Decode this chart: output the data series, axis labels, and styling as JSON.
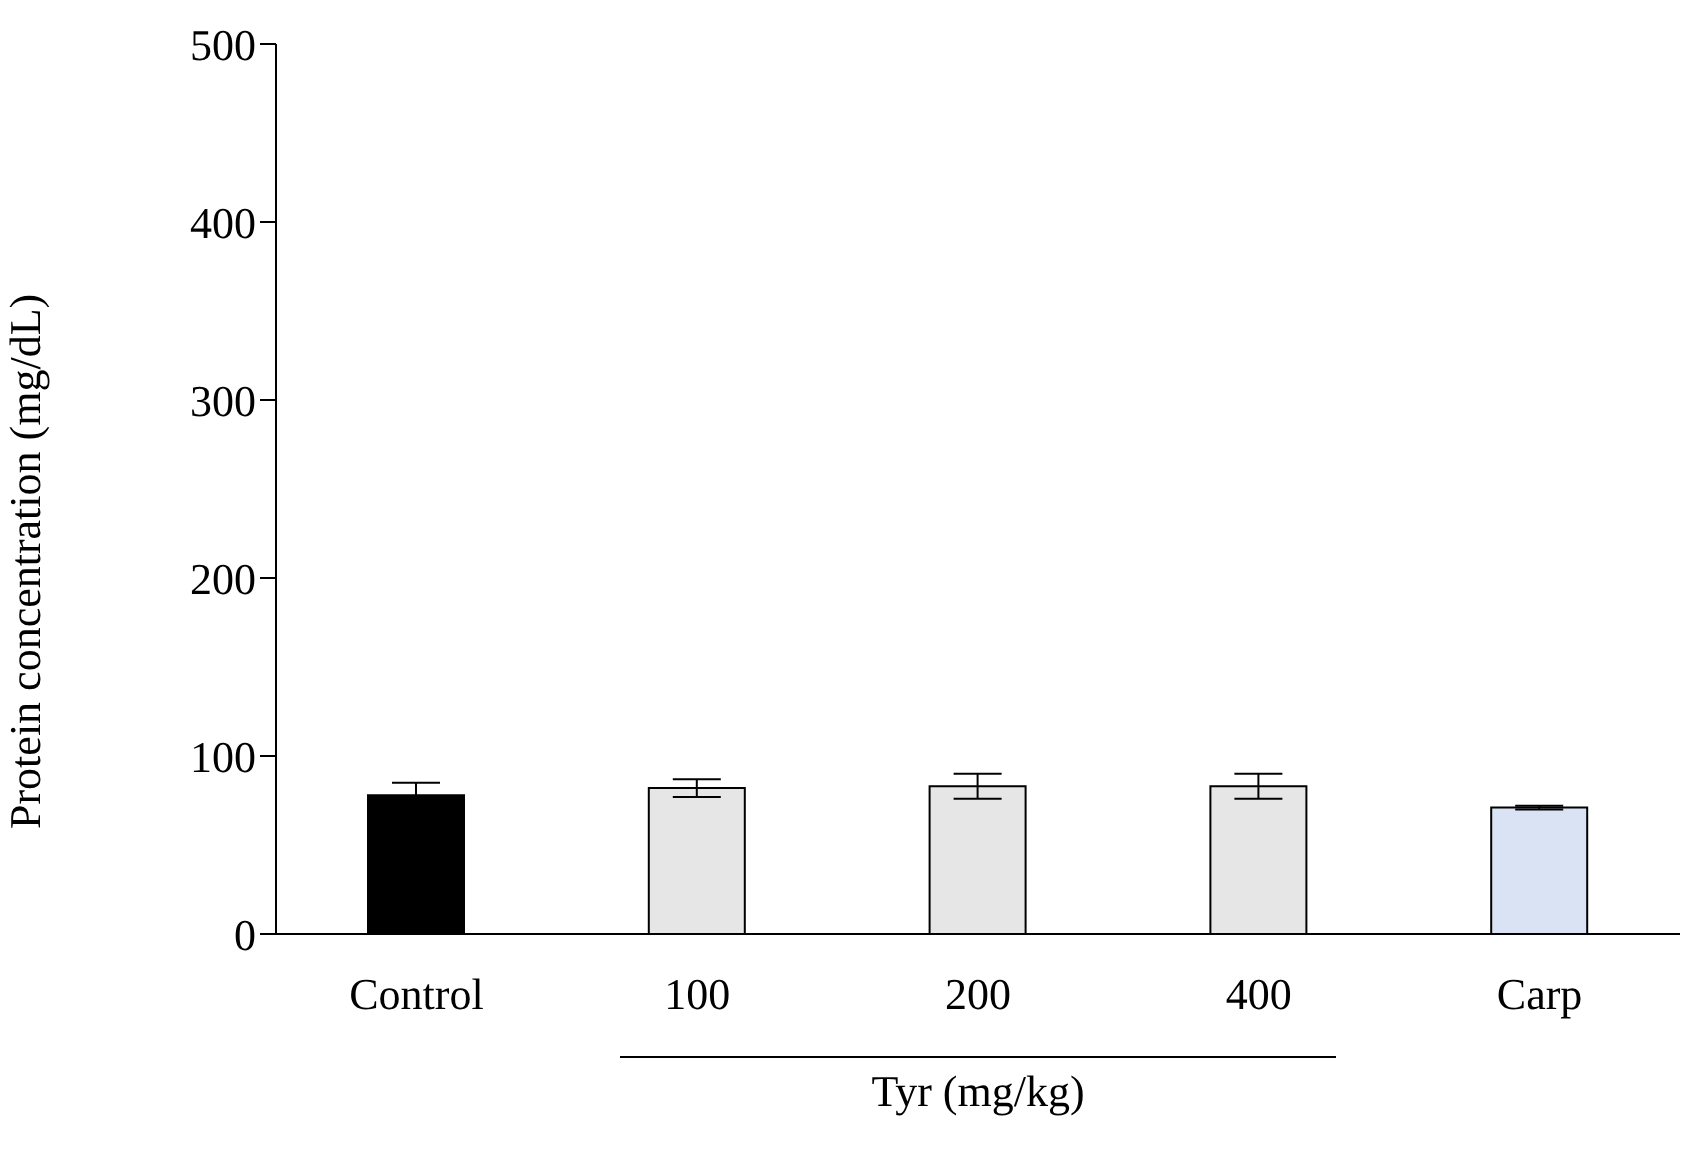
{
  "chart_data": {
    "type": "bar",
    "ylabel": "Protein concentration (mg/dL)",
    "xlabel": "Tyr (mg/kg)",
    "categories": [
      "Control",
      "100",
      "200",
      "400",
      "Carp"
    ],
    "values": [
      78,
      82,
      83,
      83,
      71
    ],
    "errors": [
      7,
      5,
      7,
      7,
      1
    ],
    "colors": [
      "#000000",
      "#e6e6e6",
      "#e6e6e6",
      "#e6e6e6",
      "#dae3f3"
    ],
    "ylim": [
      0,
      500
    ],
    "yticks": [
      0,
      100,
      200,
      300,
      400,
      500
    ],
    "grid": false,
    "legend": false
  }
}
